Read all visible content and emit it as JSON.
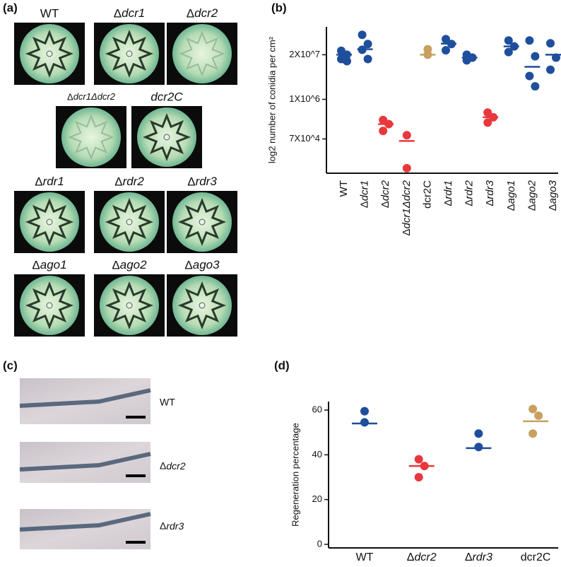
{
  "panel_labels": [
    "(a)",
    "(b)",
    "(c)",
    "(d)"
  ],
  "colony_labels": [
    "WT",
    "Δdcr1",
    "Δdcr2",
    "Δdcr1Δdcr2",
    "dcr2C",
    "Δrdr1",
    "Δrdr2",
    "Δrdr3",
    "Δago1",
    "Δago2",
    "Δago3"
  ],
  "micrograph_labels": [
    "WT",
    "Δdcr2",
    "Δrdr3"
  ],
  "chart_data": [
    {
      "type": "dot",
      "y_label": "log2 number of conidia per cm²",
      "log_scale_y": true,
      "ylim": [
        7000,
        130000000
      ],
      "yticks": [
        {
          "value": 70000,
          "label": "7X10^4"
        },
        {
          "value": 1000000,
          "label": "1X10^6"
        },
        {
          "value": 20000000,
          "label": "2X10^7"
        }
      ],
      "categories": [
        "WT",
        "Δdcr1",
        "Δdcr2",
        "Δdcr1Δdcr2",
        "dcr2C",
        "Δrdr1",
        "Δrdr2",
        "Δrdr3",
        "Δago1",
        "Δago2",
        "Δago3"
      ],
      "groups": [
        {
          "color": "#1f4e9c",
          "values": [
            26000000,
            20000000,
            15000000,
            13000000
          ],
          "mean": 20000000
        },
        {
          "color": "#1f4e9c",
          "values": [
            76000000,
            41000000,
            28000000,
            15000000
          ],
          "mean": 29000000
        },
        {
          "color": "#e8383d",
          "values": [
            250000,
            190000,
            120000
          ],
          "mean": 190000
        },
        {
          "color": "#e8383d",
          "values": [
            90000,
            9800
          ],
          "mean": 61000
        },
        {
          "color": "#c8a060",
          "values": [
            29000000,
            20000000
          ],
          "mean": 20000000
        },
        {
          "color": "#1f4e9c",
          "values": [
            57000000,
            41000000,
            27000000
          ],
          "mean": 42000000
        },
        {
          "color": "#1f4e9c",
          "values": [
            20000000,
            16500000,
            13700000
          ],
          "mean": 16500000
        },
        {
          "color": "#e8383d",
          "values": [
            410000,
            300000,
            210000
          ],
          "mean": 300000
        },
        {
          "color": "#1f4e9c",
          "values": [
            52000000,
            35000000,
            24000000
          ],
          "mean": 35000000
        },
        {
          "color": "#1f4e9c",
          "values": [
            52000000,
            18000000,
            4800000,
            2400000
          ],
          "mean": 8900000
        },
        {
          "color": "#1f4e9c",
          "values": [
            43000000,
            16500000,
            7300000
          ],
          "mean": 20000000
        }
      ]
    },
    {
      "type": "dot",
      "y_label": "Regeneration percentage",
      "log_scale_y": false,
      "ylim": [
        -1.6,
        63.8
      ],
      "yticks": [
        0,
        20,
        40,
        60
      ],
      "categories": [
        "WT",
        "Δdcr2",
        "Δrdr3",
        "dcr2C"
      ],
      "groups": [
        {
          "color": "#1f4e9c",
          "values": [
            59.5,
            54.5
          ],
          "mean": 54
        },
        {
          "color": "#e8383d",
          "values": [
            38,
            35,
            30
          ],
          "mean": 35
        },
        {
          "color": "#1f4e9c",
          "values": [
            49.5,
            43.5
          ],
          "mean": 43
        },
        {
          "color": "#c8a060",
          "values": [
            60.5,
            57.5,
            49.5
          ],
          "mean": 55
        }
      ]
    }
  ]
}
